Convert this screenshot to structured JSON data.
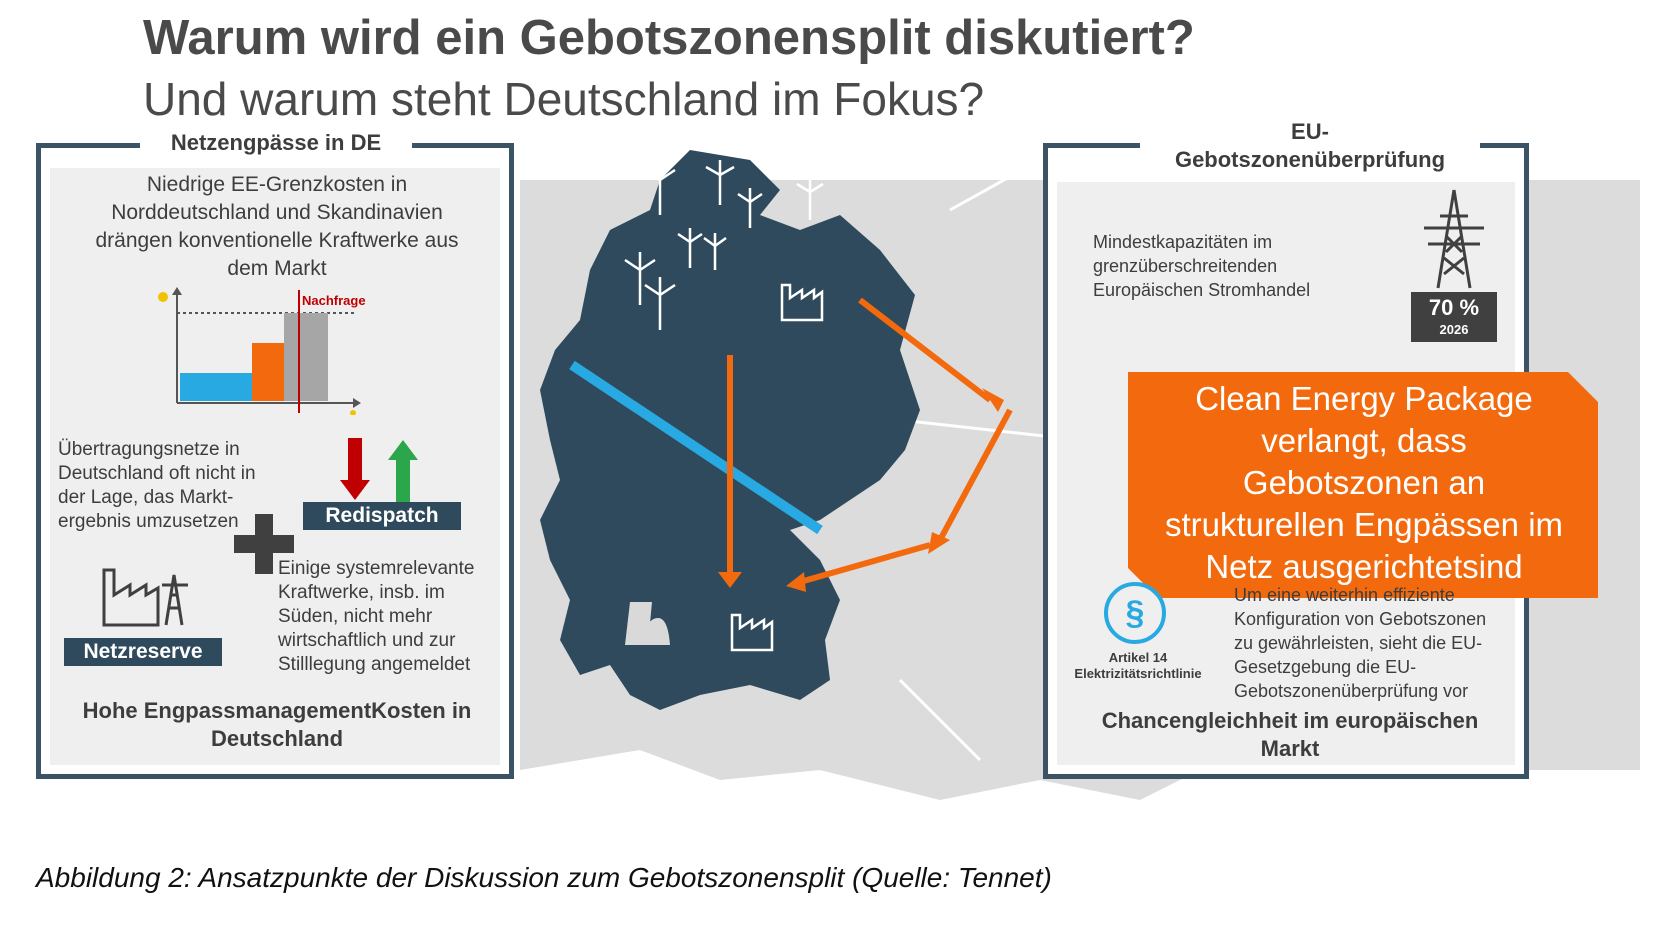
{
  "title": "Warum wird ein Gebotszonensplit diskutiert?",
  "subtitle": "Und warum steht Deutschland im Fokus?",
  "left_panel": {
    "header": "Netzengpässe in DE",
    "intro": [
      "Niedrige EE-Grenzkosten in",
      "Norddeutschland und Skandinavien",
      "drängen konventionelle Kraftwerke aus",
      "dem Markt"
    ],
    "chart_label_demand": "Nachfrage",
    "grid_text": [
      "Übertragungsnetze in",
      "Deutschland oft nicht in",
      "der Lage, das Markt-",
      "ergebnis umzusetzen"
    ],
    "redispatch_label": "Redispatch",
    "plants_text": [
      "Einige systemrelevante",
      "Kraftwerke, insb. im",
      "Süden, nicht mehr",
      "wirtschaftlich und zur",
      "Stilllegung angemeldet"
    ],
    "netzreserve_label": "Netzreserve",
    "conclusion": [
      "Hohe EngpassmanagementKosten in",
      "Deutschland"
    ]
  },
  "right_panel": {
    "header": [
      "EU-",
      "Gebotszonenüberprüfung"
    ],
    "capacity_text": [
      "Mindestkapazitäten im",
      "grenzüberschreitenden",
      "Europäischen Stromhandel"
    ],
    "capacity_value": "70 %",
    "capacity_year": "2026",
    "cep_text": [
      "Clean Energy Package",
      "verlangt, dass",
      "Gebotszonen an",
      "strukturellen Engpässen im",
      "Netz ausgerichtetsind"
    ],
    "article_label": [
      "Artikel 14",
      "Elektrizitätsrichtlinie"
    ],
    "paragraph_symbol": "§",
    "review_text": [
      "Um eine weiterhin effiziente",
      "Konfiguration von Gebotszonen",
      "zu gewährleisten, sieht die EU-",
      "Gesetzgebung die EU-",
      "Gebotszonenüberprüfung vor"
    ],
    "conclusion": [
      "Chancengleichheit im europäischen",
      "Markt"
    ]
  },
  "caption": "Abbildung 2: Ansatzpunkte der Diskussion zum Gebotszonensplit (Quelle: Tennet)",
  "colors": {
    "map_dark": "#2e4a5c",
    "map_gray": "#d9d9d9",
    "orange": "#f26a0d",
    "blue_line": "#29a9e1",
    "red_arrow": "#c00000",
    "green_arrow": "#2ca64b"
  }
}
